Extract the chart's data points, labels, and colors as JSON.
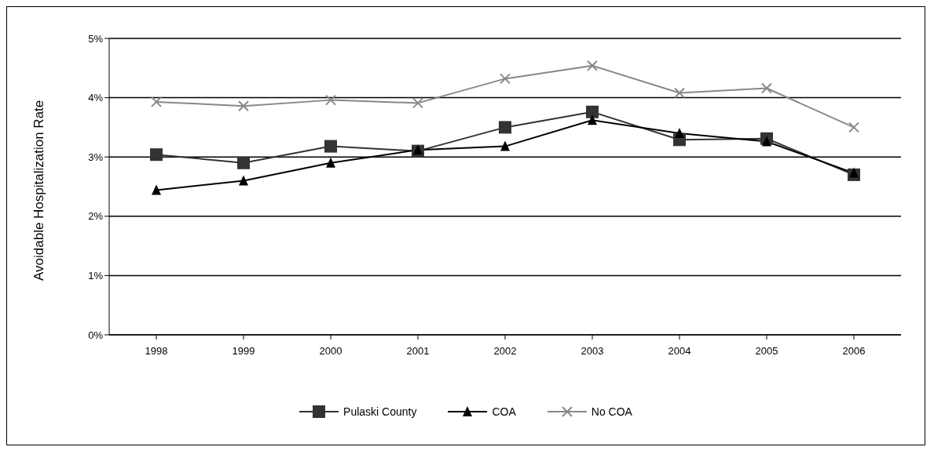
{
  "chart_data": {
    "type": "line",
    "ylabel": "Avoidable Hospitalization Rate",
    "categories": [
      "1998",
      "1999",
      "2000",
      "2001",
      "2002",
      "2003",
      "2004",
      "2005",
      "2006"
    ],
    "series": [
      {
        "name": "Pulaski County",
        "color": "#333333",
        "marker": "square",
        "values": [
          3.04,
          2.9,
          3.18,
          3.1,
          3.5,
          3.76,
          3.29,
          3.31,
          2.7
        ]
      },
      {
        "name": "COA",
        "color": "#000000",
        "marker": "triangle",
        "values": [
          2.44,
          2.6,
          2.9,
          3.12,
          3.18,
          3.62,
          3.4,
          3.26,
          2.73
        ]
      },
      {
        "name": "No COA",
        "color": "#888888",
        "marker": "cross",
        "values": [
          3.93,
          3.86,
          3.96,
          3.91,
          4.32,
          4.54,
          4.08,
          4.16,
          3.5
        ]
      }
    ],
    "ylim": [
      0,
      5
    ],
    "yticks": [
      {
        "value": 0,
        "label": "0%"
      },
      {
        "value": 1,
        "label": "1%"
      },
      {
        "value": 2,
        "label": "2%"
      },
      {
        "value": 3,
        "label": "3%"
      },
      {
        "value": 4,
        "label": "4%"
      },
      {
        "value": 5,
        "label": "5%"
      }
    ],
    "grid": "y",
    "legend": "bottom",
    "line_style": "solid"
  }
}
